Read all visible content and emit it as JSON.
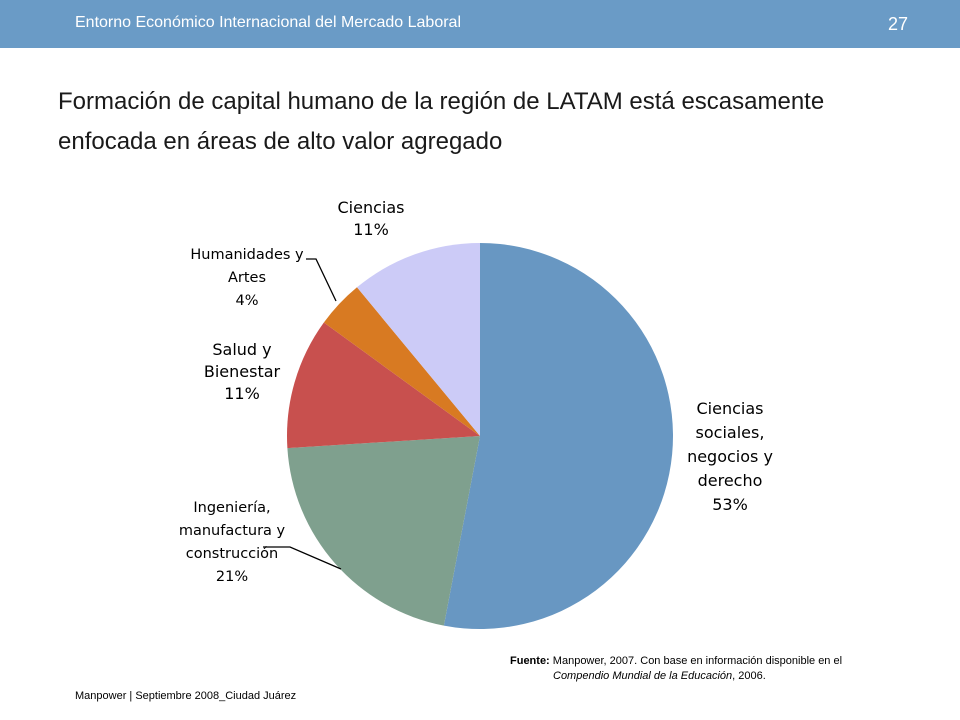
{
  "header": {
    "title": "Entorno Económico Internacional del Mercado Laboral",
    "page_number": "27"
  },
  "slide": {
    "title": "Formación de capital humano de la región de LATAM está escasamente enfocada en áreas de alto valor agregado"
  },
  "chart_data": {
    "type": "pie",
    "title": "",
    "slices": [
      {
        "label": [
          "Ciencias",
          "sociales,",
          "negocios y",
          "derecho"
        ],
        "pct_label": "53%",
        "value": 53,
        "color": "#6897c2"
      },
      {
        "label": [
          "Ingeniería,",
          "manufactura y",
          "construcción"
        ],
        "pct_label": "21%",
        "value": 21,
        "color": "#7fa08e"
      },
      {
        "label": [
          "Salud y",
          "Bienestar"
        ],
        "pct_label": "11%",
        "value": 11,
        "color": "#c8504e"
      },
      {
        "label": [
          "Humanidades y",
          "Artes"
        ],
        "pct_label": "4%",
        "value": 4,
        "color": "#d87a22"
      },
      {
        "label": [
          "Ciencias"
        ],
        "pct_label": "11%",
        "value": 11,
        "color": "#cccbf7"
      }
    ]
  },
  "source": {
    "label": "Fuente:",
    "line1": "Manpower, 2007.  Con base en información disponible en el",
    "line2_italic": "Compendio Mundial de la Educación",
    "line2_rest": ", 2006."
  },
  "footer": {
    "text": "Manpower | Septiembre 2008_Ciudad Juárez"
  }
}
